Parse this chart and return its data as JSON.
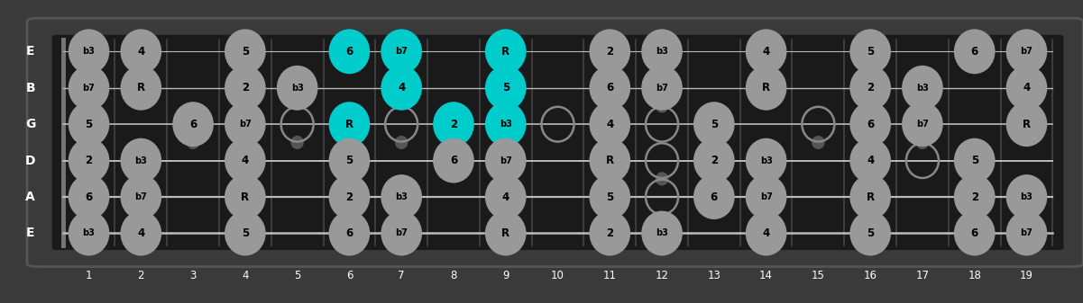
{
  "num_frets": 19,
  "num_strings": 6,
  "string_names": [
    "E",
    "B",
    "G",
    "D",
    "A",
    "E"
  ],
  "bg_color": "#3a3a3a",
  "fret_color": "#555555",
  "string_color": "#aaaaaa",
  "note_color_normal": "#999999",
  "note_color_highlight": "#00cccc",
  "note_text_color": "#000000",
  "open_circle_color": "#888888",
  "fret_markers": [
    3,
    5,
    7,
    9,
    12,
    15,
    17
  ],
  "fret_marker_double": [
    12
  ],
  "notes": [
    {
      "string": 0,
      "fret": 1,
      "label": "b3",
      "highlight": false
    },
    {
      "string": 0,
      "fret": 2,
      "label": "4",
      "highlight": false
    },
    {
      "string": 0,
      "fret": 4,
      "label": "5",
      "highlight": false
    },
    {
      "string": 0,
      "fret": 6,
      "label": "6",
      "highlight": true
    },
    {
      "string": 0,
      "fret": 7,
      "label": "b7",
      "highlight": true
    },
    {
      "string": 0,
      "fret": 9,
      "label": "R",
      "highlight": true
    },
    {
      "string": 0,
      "fret": 11,
      "label": "2",
      "highlight": false
    },
    {
      "string": 0,
      "fret": 12,
      "label": "b3",
      "highlight": false
    },
    {
      "string": 0,
      "fret": 14,
      "label": "4",
      "highlight": false
    },
    {
      "string": 0,
      "fret": 16,
      "label": "5",
      "highlight": false
    },
    {
      "string": 0,
      "fret": 18,
      "label": "6",
      "highlight": false
    },
    {
      "string": 0,
      "fret": 19,
      "label": "b7",
      "highlight": false
    },
    {
      "string": 1,
      "fret": 1,
      "label": "b7",
      "highlight": false
    },
    {
      "string": 1,
      "fret": 2,
      "label": "R",
      "highlight": false
    },
    {
      "string": 1,
      "fret": 4,
      "label": "2",
      "highlight": false
    },
    {
      "string": 1,
      "fret": 5,
      "label": "b3",
      "highlight": false
    },
    {
      "string": 1,
      "fret": 7,
      "label": "4",
      "highlight": true
    },
    {
      "string": 1,
      "fret": 9,
      "label": "5",
      "highlight": true
    },
    {
      "string": 1,
      "fret": 11,
      "label": "6",
      "highlight": false
    },
    {
      "string": 1,
      "fret": 12,
      "label": "b7",
      "highlight": false
    },
    {
      "string": 1,
      "fret": 14,
      "label": "R",
      "highlight": false
    },
    {
      "string": 1,
      "fret": 16,
      "label": "2",
      "highlight": false
    },
    {
      "string": 1,
      "fret": 17,
      "label": "b3",
      "highlight": false
    },
    {
      "string": 1,
      "fret": 19,
      "label": "4",
      "highlight": false
    },
    {
      "string": 2,
      "fret": 1,
      "label": "5",
      "highlight": false
    },
    {
      "string": 2,
      "fret": 3,
      "label": "6",
      "highlight": false
    },
    {
      "string": 2,
      "fret": 4,
      "label": "b7",
      "highlight": false
    },
    {
      "string": 2,
      "fret": 6,
      "label": "R",
      "highlight": true
    },
    {
      "string": 2,
      "fret": 8,
      "label": "2",
      "highlight": true
    },
    {
      "string": 2,
      "fret": 9,
      "label": "b3",
      "highlight": true
    },
    {
      "string": 2,
      "fret": 11,
      "label": "4",
      "highlight": false
    },
    {
      "string": 2,
      "fret": 13,
      "label": "5",
      "highlight": false
    },
    {
      "string": 2,
      "fret": 16,
      "label": "6",
      "highlight": false
    },
    {
      "string": 2,
      "fret": 17,
      "label": "b7",
      "highlight": false
    },
    {
      "string": 2,
      "fret": 19,
      "label": "R",
      "highlight": false
    },
    {
      "string": 3,
      "fret": 1,
      "label": "2",
      "highlight": false
    },
    {
      "string": 3,
      "fret": 2,
      "label": "b3",
      "highlight": false
    },
    {
      "string": 3,
      "fret": 4,
      "label": "4",
      "highlight": false
    },
    {
      "string": 3,
      "fret": 6,
      "label": "5",
      "highlight": false
    },
    {
      "string": 3,
      "fret": 8,
      "label": "6",
      "highlight": false
    },
    {
      "string": 3,
      "fret": 9,
      "label": "b7",
      "highlight": false
    },
    {
      "string": 3,
      "fret": 11,
      "label": "R",
      "highlight": false
    },
    {
      "string": 3,
      "fret": 13,
      "label": "2",
      "highlight": false
    },
    {
      "string": 3,
      "fret": 14,
      "label": "b3",
      "highlight": false
    },
    {
      "string": 3,
      "fret": 16,
      "label": "4",
      "highlight": false
    },
    {
      "string": 3,
      "fret": 18,
      "label": "5",
      "highlight": false
    },
    {
      "string": 4,
      "fret": 1,
      "label": "6",
      "highlight": false
    },
    {
      "string": 4,
      "fret": 2,
      "label": "b7",
      "highlight": false
    },
    {
      "string": 4,
      "fret": 4,
      "label": "R",
      "highlight": false
    },
    {
      "string": 4,
      "fret": 6,
      "label": "2",
      "highlight": false
    },
    {
      "string": 4,
      "fret": 7,
      "label": "b3",
      "highlight": false
    },
    {
      "string": 4,
      "fret": 9,
      "label": "4",
      "highlight": false
    },
    {
      "string": 4,
      "fret": 11,
      "label": "5",
      "highlight": false
    },
    {
      "string": 4,
      "fret": 13,
      "label": "6",
      "highlight": false
    },
    {
      "string": 4,
      "fret": 14,
      "label": "b7",
      "highlight": false
    },
    {
      "string": 4,
      "fret": 16,
      "label": "R",
      "highlight": false
    },
    {
      "string": 4,
      "fret": 18,
      "label": "2",
      "highlight": false
    },
    {
      "string": 4,
      "fret": 19,
      "label": "b3",
      "highlight": false
    },
    {
      "string": 5,
      "fret": 1,
      "label": "b3",
      "highlight": false
    },
    {
      "string": 5,
      "fret": 2,
      "label": "4",
      "highlight": false
    },
    {
      "string": 5,
      "fret": 4,
      "label": "5",
      "highlight": false
    },
    {
      "string": 5,
      "fret": 6,
      "label": "6",
      "highlight": false
    },
    {
      "string": 5,
      "fret": 7,
      "label": "b7",
      "highlight": false
    },
    {
      "string": 5,
      "fret": 9,
      "label": "R",
      "highlight": false
    },
    {
      "string": 5,
      "fret": 11,
      "label": "2",
      "highlight": false
    },
    {
      "string": 5,
      "fret": 12,
      "label": "b3",
      "highlight": false
    },
    {
      "string": 5,
      "fret": 14,
      "label": "4",
      "highlight": false
    },
    {
      "string": 5,
      "fret": 16,
      "label": "5",
      "highlight": false
    },
    {
      "string": 5,
      "fret": 18,
      "label": "6",
      "highlight": false
    },
    {
      "string": 5,
      "fret": 19,
      "label": "b7",
      "highlight": false
    }
  ],
  "open_circles": [
    {
      "string": 2,
      "fret": 3
    },
    {
      "string": 2,
      "fret": 5
    },
    {
      "string": 2,
      "fret": 7
    },
    {
      "string": 2,
      "fret": 10
    },
    {
      "string": 2,
      "fret": 12
    },
    {
      "string": 2,
      "fret": 15
    },
    {
      "string": 2,
      "fret": 17
    },
    {
      "string": 3,
      "fret": 12
    },
    {
      "string": 3,
      "fret": 17
    },
    {
      "string": 4,
      "fret": 12
    }
  ]
}
